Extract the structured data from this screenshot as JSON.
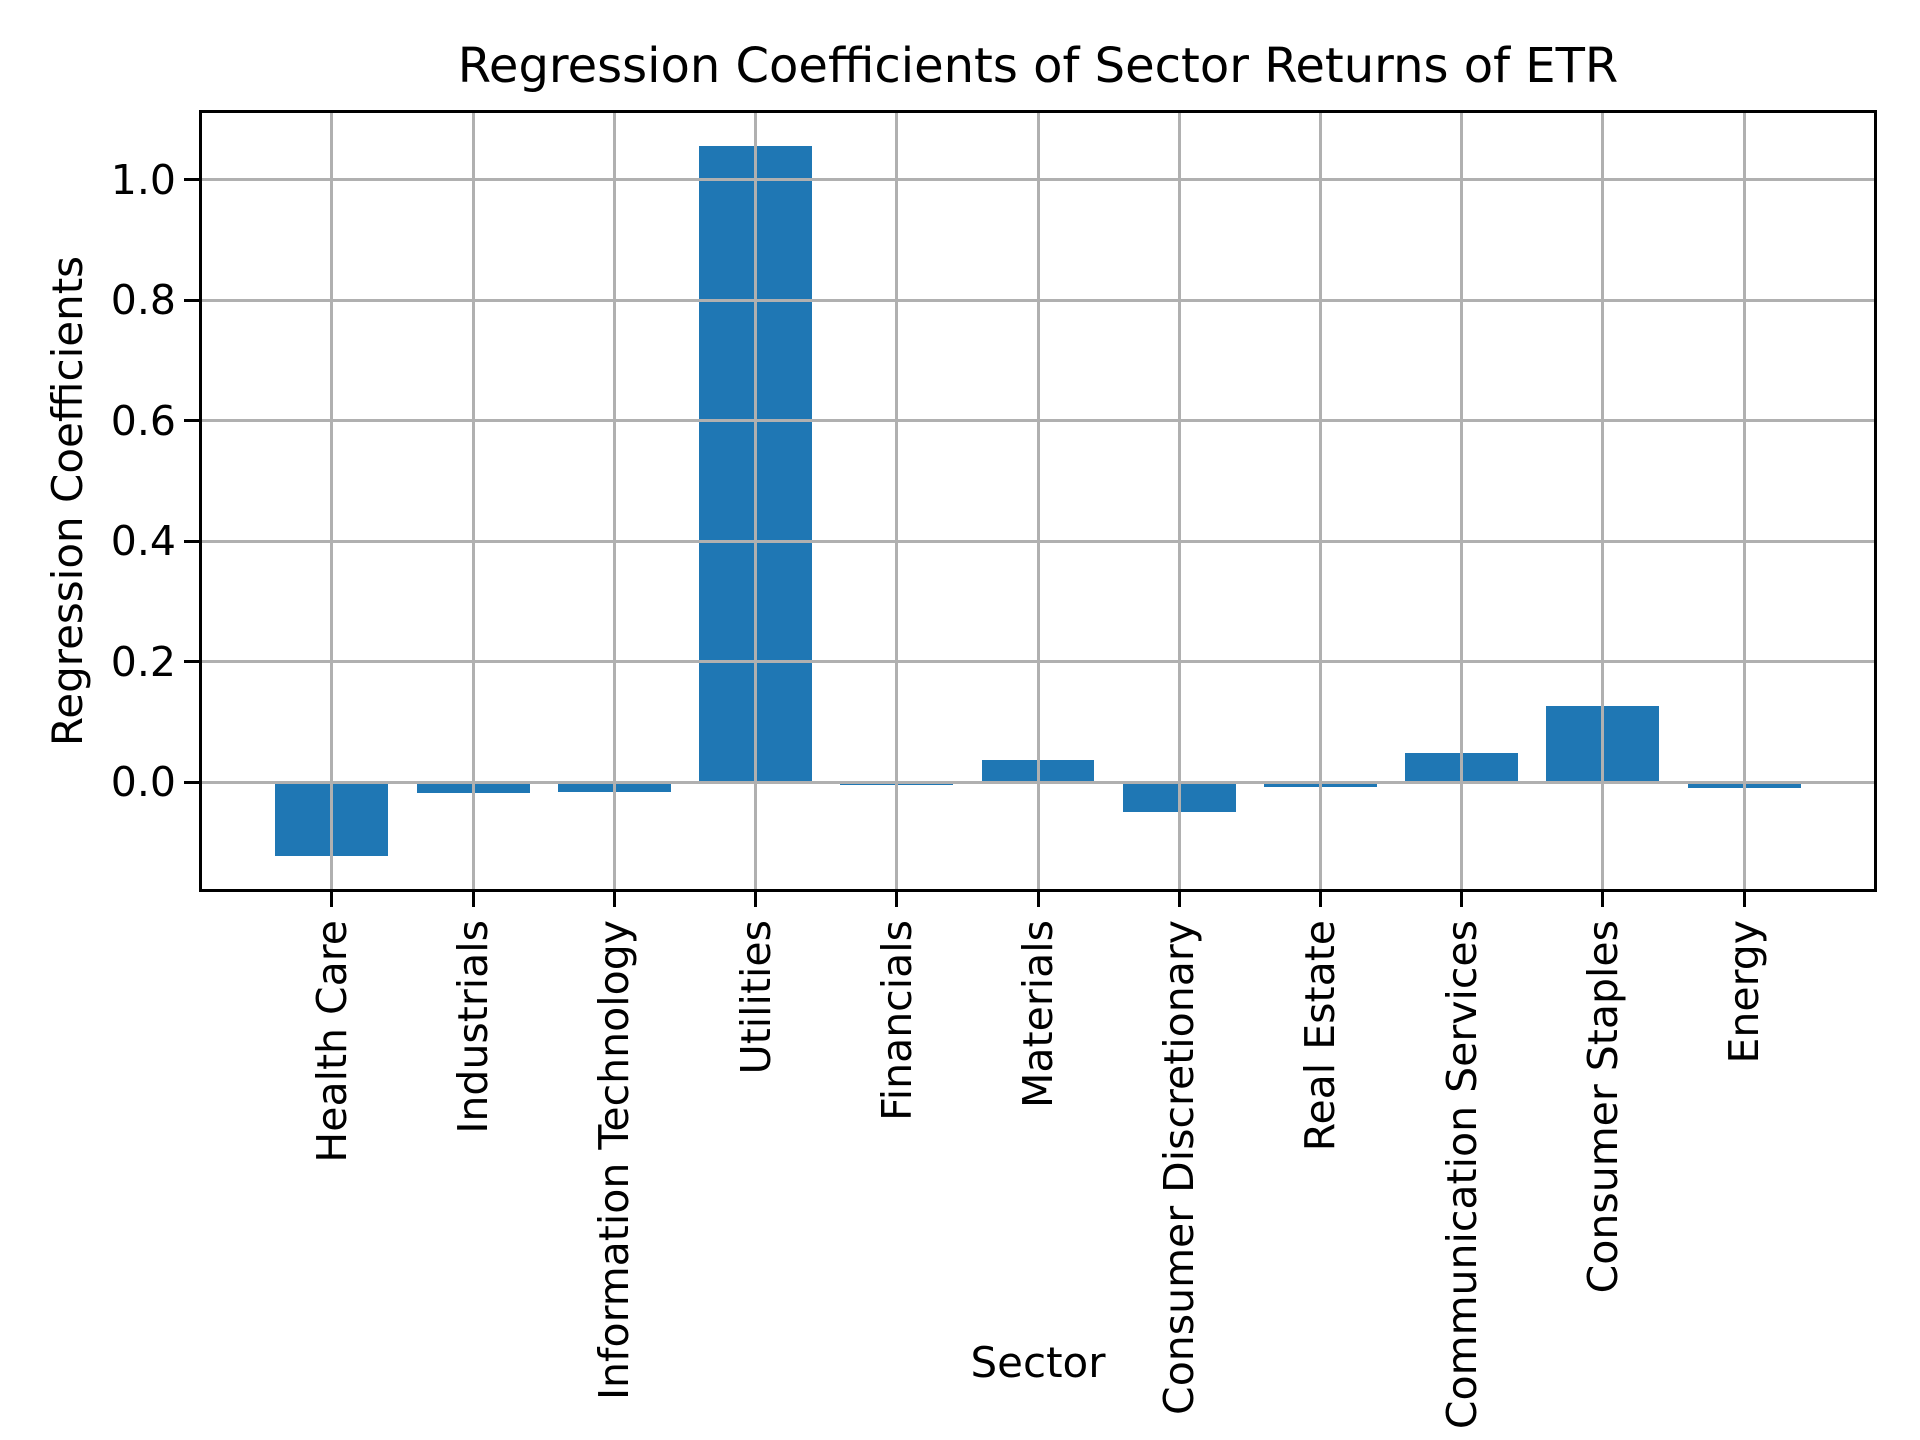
{
  "chart_data": {
    "type": "bar",
    "title": "Regression Coefficients of Sector Returns of ETR",
    "xlabel": "Sector",
    "ylabel": "Regression Coefficients",
    "categories": [
      "Health Care",
      "Industrials",
      "Information Technology",
      "Utilities",
      "Financials",
      "Materials",
      "Consumer Discretionary",
      "Real Estate",
      "Communication Services",
      "Consumer Staples",
      "Energy"
    ],
    "values": [
      -0.123,
      -0.018,
      -0.016,
      1.057,
      -0.004,
      0.037,
      -0.05,
      -0.008,
      0.048,
      0.126,
      -0.01
    ],
    "yticks": [
      0.0,
      0.2,
      0.4,
      0.6,
      0.8,
      1.0
    ],
    "ytick_labels": [
      "0.0",
      "0.2",
      "0.4",
      "0.6",
      "0.8",
      "1.0"
    ],
    "ylim": [
      -0.182,
      1.116
    ],
    "xlim": [
      -0.94,
      10.94
    ],
    "bar_width": 0.8,
    "grid": true,
    "legend": false,
    "colors": {
      "bar": "#1f77b4",
      "grid": "#b0b0b0",
      "spine": "#000000",
      "background": "#ffffff"
    }
  }
}
